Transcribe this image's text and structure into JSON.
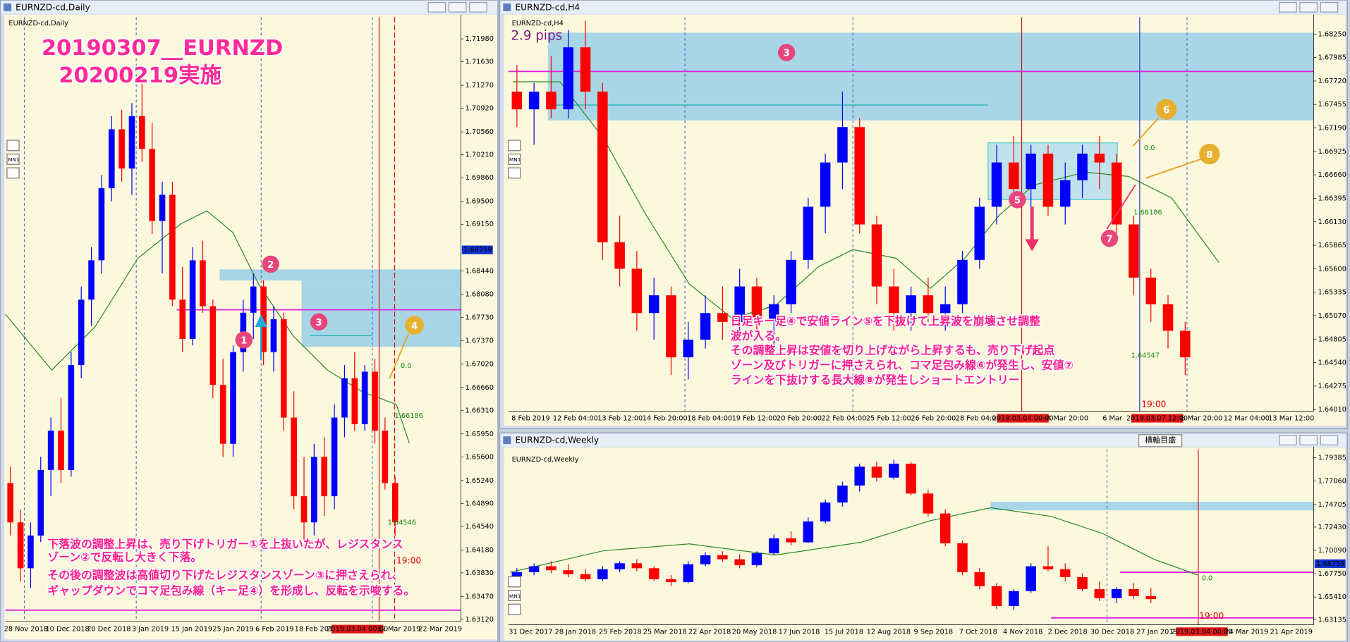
{
  "windows": [
    {
      "title": "EURNZD-cd,Daily",
      "label": "EURNZD-cd,Daily",
      "button": "MN1",
      "headline": [
        "20190307__EURNZD",
        "20200219実施"
      ],
      "note": [
        "下落波の調整上昇は、売り下げトリガー①を上抜いたが、レジスタンス",
        "ゾーン②で反転し大きく下落。",
        "その後の調整波は高値切り下げたレジスタンスゾーン③に押さえられ、",
        "ギャップダウンでコマ足包み線（キー足④）を形成し、反転を示唆する。"
      ],
      "markers": [
        "1",
        "2",
        "3",
        "4"
      ],
      "fib_labels": [
        "0.0",
        "1.66186",
        "1.64546"
      ],
      "time_label": "19:00",
      "ylim": [
        1.6309,
        1.7231
      ],
      "yticks": [
        {
          "value": 1.7198,
          "label": "1.71980"
        },
        {
          "value": 1.7163,
          "label": "1.71630"
        },
        {
          "value": 1.7127,
          "label": "1.71270"
        },
        {
          "value": 1.7092,
          "label": "1.70920"
        },
        {
          "value": 1.7056,
          "label": "1.70560"
        },
        {
          "value": 1.7021,
          "label": "1.70210"
        },
        {
          "value": 1.6986,
          "label": "1.69860"
        },
        {
          "value": 1.695,
          "label": "1.69500"
        },
        {
          "value": 1.6915,
          "label": "1.69150"
        },
        {
          "value": 1.6844,
          "label": "1.68440"
        },
        {
          "value": 1.6808,
          "label": "1.68080"
        },
        {
          "value": 1.6773,
          "label": "1.67730"
        },
        {
          "value": 1.6737,
          "label": "1.67370"
        },
        {
          "value": 1.6702,
          "label": "1.67020"
        },
        {
          "value": 1.6666,
          "label": "1.66660"
        },
        {
          "value": 1.6631,
          "label": "1.66310"
        },
        {
          "value": 1.6595,
          "label": "1.65950"
        },
        {
          "value": 1.656,
          "label": "1.65600"
        },
        {
          "value": 1.6524,
          "label": "1.65240"
        },
        {
          "value": 1.6489,
          "label": "1.64890"
        },
        {
          "value": 1.6454,
          "label": "1.64540"
        },
        {
          "value": 1.6418,
          "label": "1.64180"
        },
        {
          "value": 1.6383,
          "label": "1.63830"
        },
        {
          "value": 1.6347,
          "label": "1.63470"
        },
        {
          "value": 1.6312,
          "label": "1.63120"
        }
      ],
      "current_price": {
        "value": 1.68759,
        "label": "1.68759"
      },
      "dates": [
        "28 Nov 2018",
        "10 Dec 2018",
        "20 Dec 2018",
        "3 Jan 2019",
        "15 Jan 2019",
        "25 Jan 2019",
        "6 Feb 2019",
        "18 Feb 2019",
        {
          "label": "2019.03.04 00:00",
          "cursor": true
        },
        "12 Mar 2019",
        "22 Mar 2019"
      ],
      "candles": [
        [
          1.652,
          1.6545,
          1.644,
          1.646
        ],
        [
          1.646,
          1.648,
          1.637,
          1.639
        ],
        [
          1.639,
          1.646,
          1.636,
          1.644
        ],
        [
          1.644,
          1.656,
          1.643,
          1.654
        ],
        [
          1.654,
          1.662,
          1.65,
          1.66
        ],
        [
          1.66,
          1.665,
          1.652,
          1.654
        ],
        [
          1.654,
          1.672,
          1.653,
          1.67
        ],
        [
          1.67,
          1.682,
          1.668,
          1.68
        ],
        [
          1.68,
          1.688,
          1.676,
          1.686
        ],
        [
          1.686,
          1.699,
          1.684,
          1.697
        ],
        [
          1.697,
          1.708,
          1.695,
          1.706
        ],
        [
          1.706,
          1.709,
          1.698,
          1.7
        ],
        [
          1.7,
          1.71,
          1.696,
          1.708
        ],
        [
          1.708,
          1.714,
          1.701,
          1.703
        ],
        [
          1.703,
          1.707,
          1.69,
          1.692
        ],
        [
          1.692,
          1.698,
          1.684,
          1.696
        ],
        [
          1.696,
          1.698,
          1.679,
          1.68
        ],
        [
          1.68,
          1.685,
          1.672,
          1.674
        ],
        [
          1.674,
          1.688,
          1.673,
          1.686
        ],
        [
          1.686,
          1.689,
          1.678,
          1.679
        ],
        [
          1.679,
          1.68,
          1.665,
          1.667
        ],
        [
          1.667,
          1.671,
          1.656,
          1.658
        ],
        [
          1.658,
          1.673,
          1.656,
          1.672
        ],
        [
          1.672,
          1.68,
          1.669,
          1.678
        ],
        [
          1.678,
          1.684,
          1.674,
          1.682
        ],
        [
          1.682,
          1.683,
          1.67,
          1.672
        ],
        [
          1.672,
          1.679,
          1.669,
          1.677
        ],
        [
          1.677,
          1.678,
          1.66,
          1.662
        ],
        [
          1.662,
          1.666,
          1.648,
          1.65
        ],
        [
          1.65,
          1.656,
          1.643,
          1.646
        ],
        [
          1.646,
          1.658,
          1.644,
          1.656
        ],
        [
          1.656,
          1.659,
          1.647,
          1.65
        ],
        [
          1.65,
          1.664,
          1.648,
          1.662
        ],
        [
          1.662,
          1.67,
          1.659,
          1.668
        ],
        [
          1.668,
          1.672,
          1.66,
          1.661
        ],
        [
          1.661,
          1.67,
          1.66,
          1.669
        ],
        [
          1.669,
          1.671,
          1.658,
          1.66
        ],
        [
          1.66,
          1.662,
          1.651,
          1.652
        ],
        [
          1.652,
          1.653,
          1.644,
          1.646
        ]
      ]
    },
    {
      "title": "EURNZD-cd,H4",
      "label": "EURNZD-cd,H4",
      "button": "MN1",
      "spread": "2.9 pips",
      "note": [
        "日足キー足④で安値ライン⑤を下抜けて上昇波を崩壊させ調整",
        "波が入る。",
        "その調整上昇は安値を切り上げながら上昇するも、売り下げ起点",
        "ゾーン及びトリガーに押さえられ、コマ足包み線⑥が発生し、安値⑦",
        "ラインを下抜けする長大線⑧が発生しショートエントリー"
      ],
      "markers": [
        "3",
        "5",
        "6",
        "7",
        "8"
      ],
      "fib_labels": [
        "0.0",
        "1.66186",
        "1.64547"
      ],
      "time_label": "19:00",
      "ylim": [
        1.6399,
        1.6844
      ],
      "yticks": [
        {
          "value": 1.6825,
          "label": "1.68250"
        },
        1.67985,
        {
          "value": 1.6772,
          "label": "1.67720"
        },
        1.67455,
        {
          "value": 1.6719,
          "label": "1.67190"
        },
        1.66925,
        {
          "value": 1.6666,
          "label": "1.66660"
        },
        1.66395,
        {
          "value": 1.6613,
          "label": "1.66130"
        },
        1.65865,
        {
          "value": 1.656,
          "label": "1.65600"
        },
        1.65335,
        {
          "value": 1.6507,
          "label": "1.65070"
        },
        1.64805,
        {
          "value": 1.6454,
          "label": "1.64540"
        },
        1.64275,
        {
          "value": 1.6401,
          "label": "1.64010"
        }
      ],
      "dates": [
        "8 Feb 2019",
        "12 Feb 04:00",
        "13 Feb 12:00",
        "14 Feb 20:00",
        "18 Feb 04:00",
        "19 Feb 12:00",
        "20 Feb 20:00",
        "22 Feb 04:00",
        "25 Feb 12:00",
        "26 Feb 20:00",
        "28 Feb 04:00",
        {
          "label": "2019.03.04 00:00",
          "cursor": true
        },
        "4 Mar 20:00",
        "6 Mar",
        {
          "label": "2019.03.07 12:00",
          "cursor": true
        },
        "8 Mar 20:00",
        "12 Mar 04:00",
        "13 Mar 12:00"
      ],
      "candles": [
        [
          1.676,
          1.679,
          1.672,
          1.674
        ],
        [
          1.674,
          1.677,
          1.67,
          1.676
        ],
        [
          1.676,
          1.68,
          1.673,
          1.674
        ],
        [
          1.674,
          1.683,
          1.673,
          1.681
        ],
        [
          1.681,
          1.684,
          1.674,
          1.676
        ],
        [
          1.676,
          1.677,
          1.657,
          1.659
        ],
        [
          1.659,
          1.662,
          1.654,
          1.656
        ],
        [
          1.656,
          1.658,
          1.649,
          1.651
        ],
        [
          1.651,
          1.655,
          1.648,
          1.653
        ],
        [
          1.653,
          1.654,
          1.644,
          1.646
        ],
        [
          1.646,
          1.65,
          1.6435,
          1.648
        ],
        [
          1.648,
          1.653,
          1.647,
          1.651
        ],
        [
          1.651,
          1.654,
          1.648,
          1.65
        ],
        [
          1.65,
          1.656,
          1.649,
          1.654
        ],
        [
          1.654,
          1.655,
          1.649,
          1.65
        ],
        [
          1.65,
          1.653,
          1.647,
          1.652
        ],
        [
          1.652,
          1.658,
          1.651,
          1.657
        ],
        [
          1.657,
          1.664,
          1.656,
          1.663
        ],
        [
          1.663,
          1.669,
          1.66,
          1.668
        ],
        [
          1.668,
          1.676,
          1.665,
          1.672
        ],
        [
          1.672,
          1.673,
          1.66,
          1.661
        ],
        [
          1.661,
          1.662,
          1.652,
          1.654
        ],
        [
          1.654,
          1.656,
          1.649,
          1.651
        ],
        [
          1.651,
          1.654,
          1.649,
          1.653
        ],
        [
          1.653,
          1.655,
          1.65,
          1.651
        ],
        [
          1.651,
          1.654,
          1.649,
          1.652
        ],
        [
          1.652,
          1.658,
          1.651,
          1.657
        ],
        [
          1.657,
          1.664,
          1.656,
          1.663
        ],
        [
          1.663,
          1.67,
          1.661,
          1.668
        ],
        [
          1.668,
          1.671,
          1.663,
          1.665
        ],
        [
          1.665,
          1.67,
          1.662,
          1.669
        ],
        [
          1.669,
          1.67,
          1.662,
          1.663
        ],
        [
          1.663,
          1.668,
          1.661,
          1.666
        ],
        [
          1.666,
          1.67,
          1.664,
          1.669
        ],
        [
          1.669,
          1.671,
          1.665,
          1.668
        ],
        [
          1.668,
          1.669,
          1.66,
          1.661
        ],
        [
          1.661,
          1.662,
          1.653,
          1.655
        ],
        [
          1.655,
          1.656,
          1.65,
          1.652
        ],
        [
          1.652,
          1.653,
          1.647,
          1.649
        ],
        [
          1.649,
          1.65,
          1.644,
          1.646
        ]
      ]
    },
    {
      "title": "EURNZD-cd,Weekly",
      "label": "EURNZD-cd,Weekly",
      "button": "MN1",
      "tooltip": "横軸目盛",
      "fib_labels": [
        "0.0"
      ],
      "time_label": "19:00",
      "ylim": [
        1.6262,
        1.8025
      ],
      "yticks": [
        1.79385,
        {
          "value": 1.7706,
          "label": "1.77060"
        },
        1.74705,
        {
          "value": 1.7243,
          "label": "1.72430"
        },
        {
          "value": 1.7009,
          "label": "1.70090"
        },
        {
          "value": 1.6775,
          "label": "1.67750"
        },
        {
          "value": 1.6541,
          "label": "1.65410"
        },
        1.63135
      ],
      "current_price": {
        "value": 1.68759,
        "label": "1.68759"
      },
      "dates": [
        "31 Dec 2017",
        "28 Jan 2018",
        "25 Feb 2018",
        "25 Mar 2018",
        "22 Apr 2018",
        "20 May 2018",
        "17 Jun 2018",
        "15 Jul 2018",
        "12 Aug 2018",
        "9 Sep 2018",
        "7 Oct 2018",
        "4 Nov 2018",
        "2 Dec 2018",
        "30 Dec 2018",
        "27 Jan 2019",
        {
          "label": "2019.03.04 00:00",
          "cursor": true
        },
        "24 Mar 2019",
        "21 Apr 2019"
      ],
      "candles": [
        [
          1.675,
          1.683,
          1.672,
          1.679
        ],
        [
          1.679,
          1.688,
          1.676,
          1.685
        ],
        [
          1.685,
          1.69,
          1.678,
          1.681
        ],
        [
          1.681,
          1.687,
          1.674,
          1.677
        ],
        [
          1.677,
          1.682,
          1.67,
          1.672
        ],
        [
          1.672,
          1.685,
          1.67,
          1.682
        ],
        [
          1.682,
          1.69,
          1.679,
          1.688
        ],
        [
          1.688,
          1.692,
          1.68,
          1.683
        ],
        [
          1.683,
          1.685,
          1.67,
          1.672
        ],
        [
          1.672,
          1.676,
          1.665,
          1.669
        ],
        [
          1.669,
          1.69,
          1.668,
          1.687
        ],
        [
          1.687,
          1.699,
          1.685,
          1.696
        ],
        [
          1.696,
          1.7,
          1.689,
          1.692
        ],
        [
          1.692,
          1.697,
          1.683,
          1.686
        ],
        [
          1.686,
          1.7,
          1.684,
          1.698
        ],
        [
          1.698,
          1.717,
          1.696,
          1.713
        ],
        [
          1.713,
          1.72,
          1.706,
          1.709
        ],
        [
          1.709,
          1.734,
          1.708,
          1.73
        ],
        [
          1.73,
          1.752,
          1.728,
          1.749
        ],
        [
          1.749,
          1.77,
          1.745,
          1.766
        ],
        [
          1.766,
          1.788,
          1.76,
          1.785
        ],
        [
          1.785,
          1.79,
          1.77,
          1.774
        ],
        [
          1.774,
          1.792,
          1.772,
          1.788
        ],
        [
          1.788,
          1.79,
          1.756,
          1.758
        ],
        [
          1.758,
          1.762,
          1.735,
          1.738
        ],
        [
          1.738,
          1.742,
          1.705,
          1.708
        ],
        [
          1.708,
          1.711,
          1.676,
          1.679
        ],
        [
          1.679,
          1.683,
          1.662,
          1.665
        ],
        [
          1.665,
          1.668,
          1.642,
          1.645
        ],
        [
          1.645,
          1.662,
          1.641,
          1.66
        ],
        [
          1.66,
          1.688,
          1.658,
          1.685
        ],
        [
          1.685,
          1.705,
          1.68,
          1.682
        ],
        [
          1.682,
          1.688,
          1.67,
          1.674
        ],
        [
          1.674,
          1.678,
          1.66,
          1.662
        ],
        [
          1.662,
          1.67,
          1.65,
          1.653
        ],
        [
          1.653,
          1.664,
          1.648,
          1.662
        ],
        [
          1.662,
          1.668,
          1.652,
          1.655
        ],
        [
          1.655,
          1.663,
          1.648,
          1.652
        ]
      ]
    }
  ]
}
